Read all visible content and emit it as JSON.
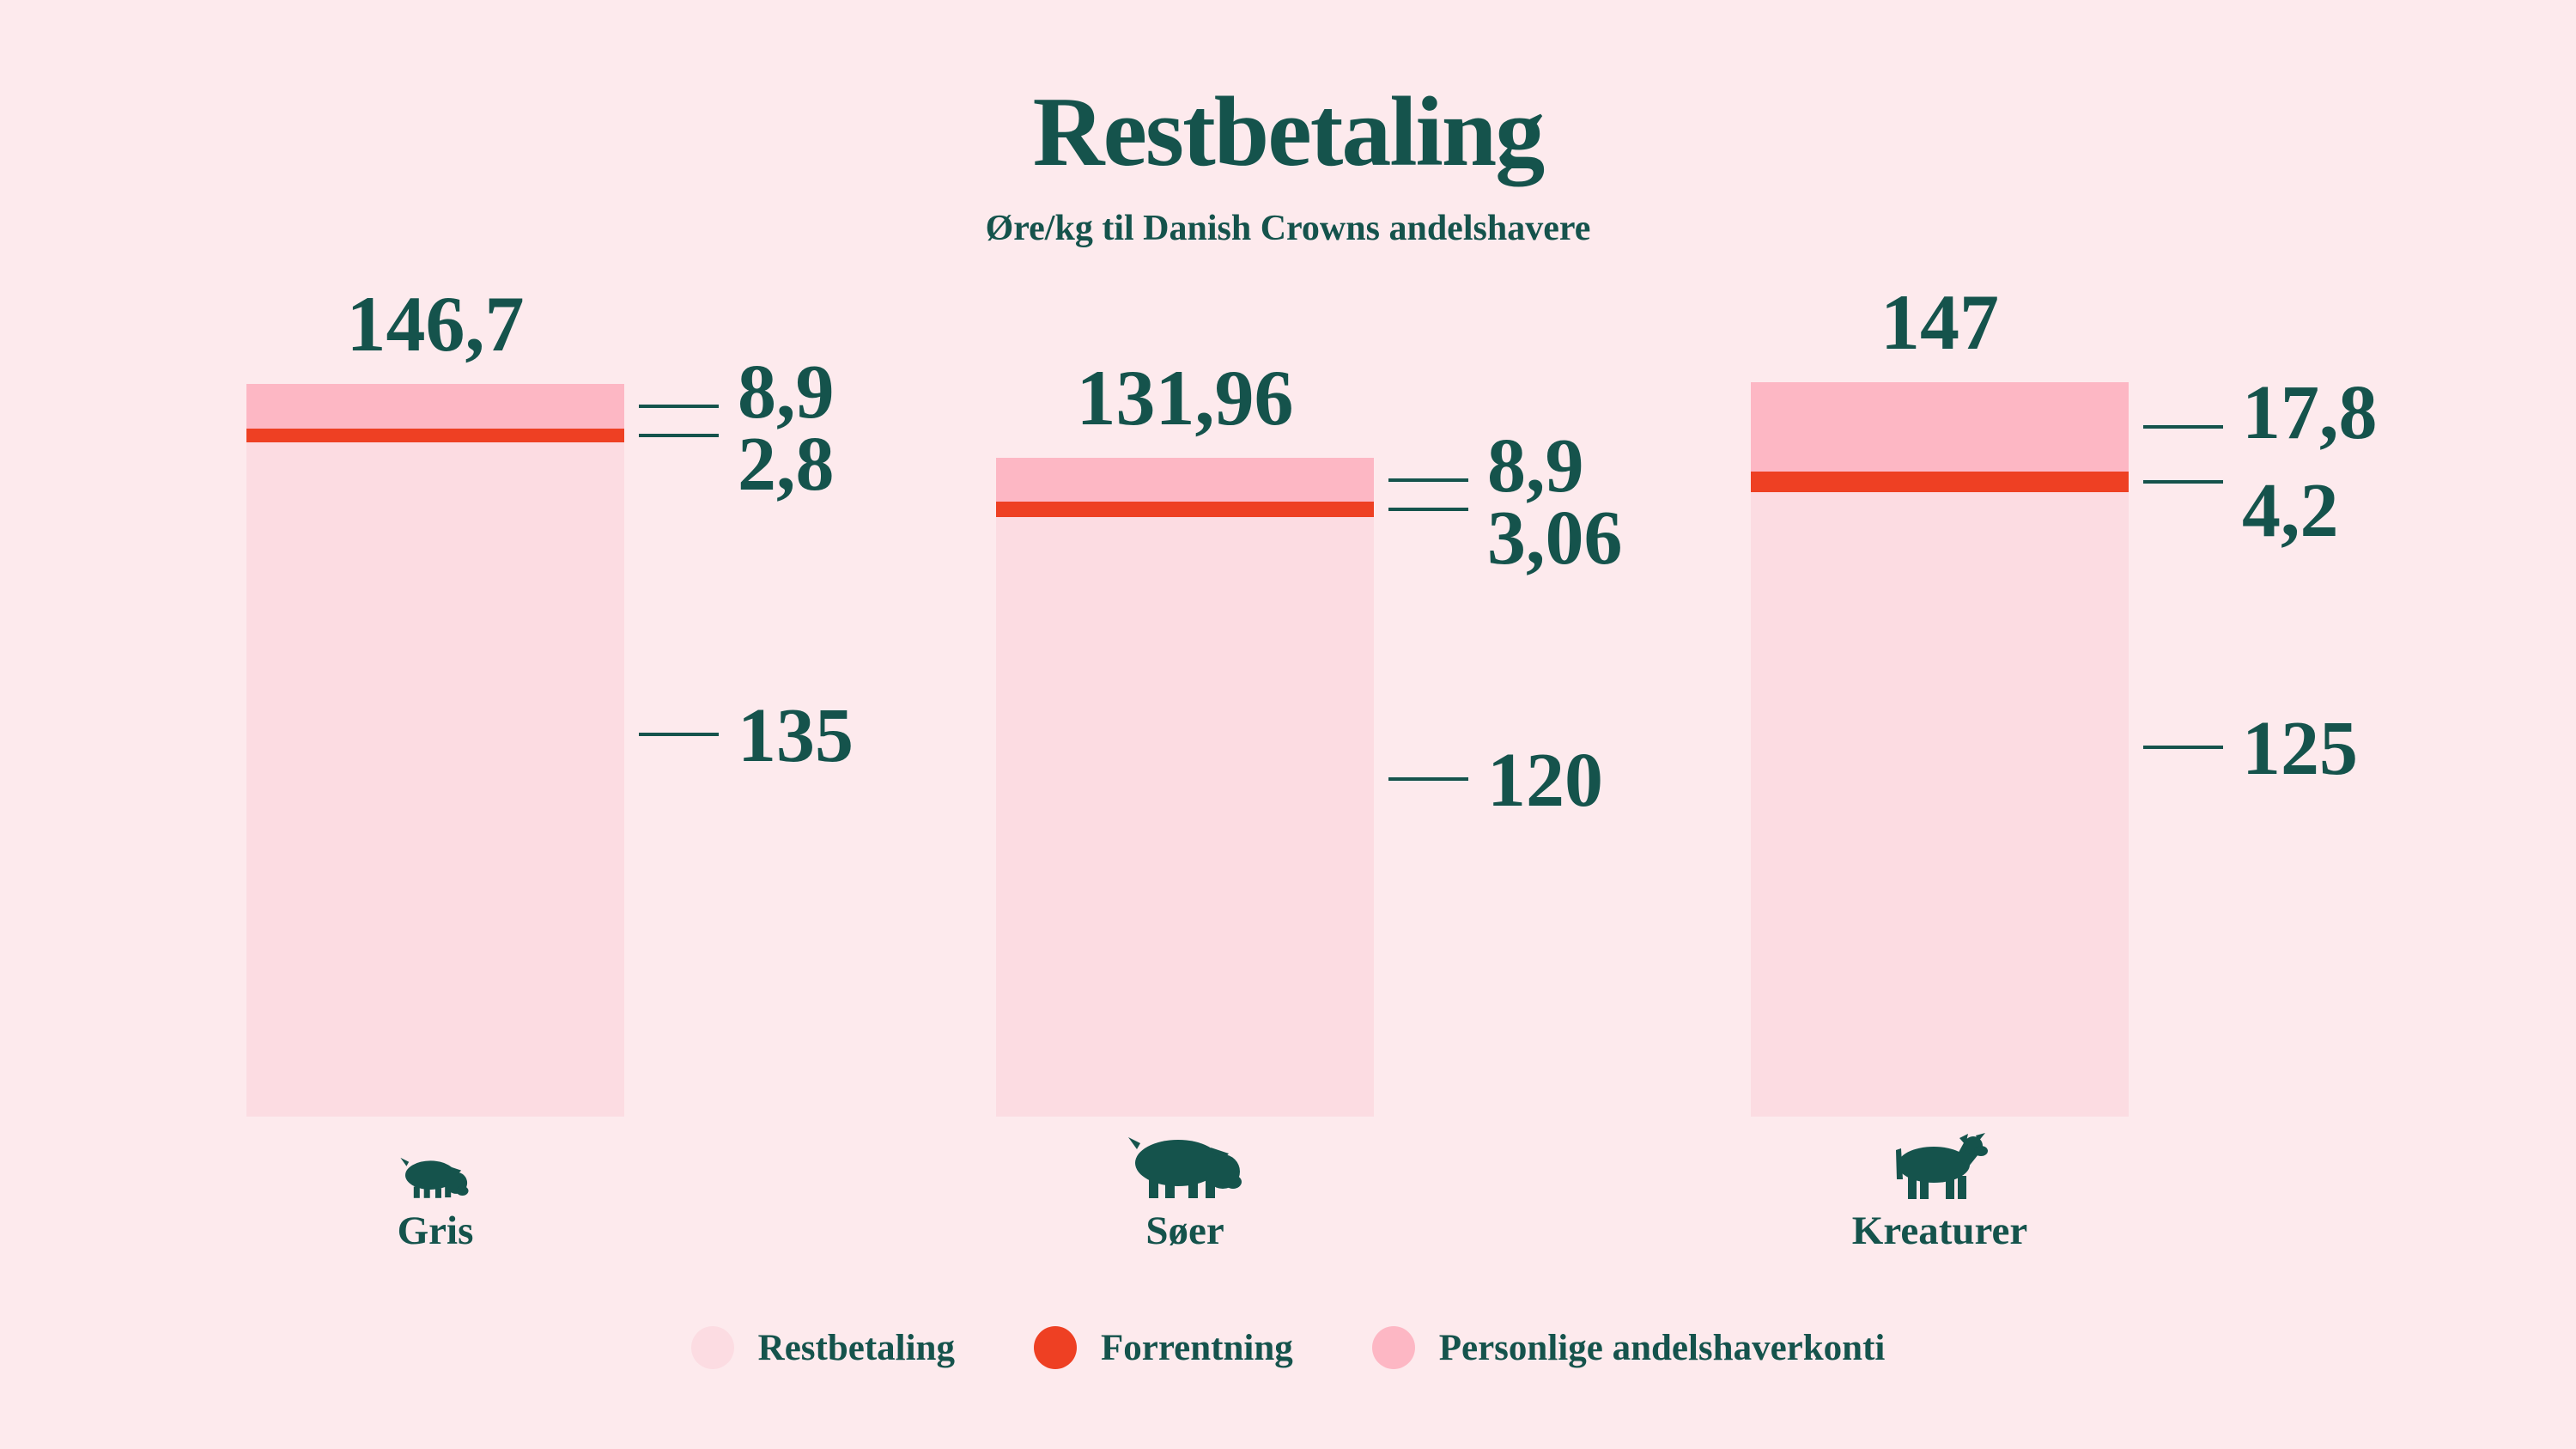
{
  "header": {
    "title": "Restbetaling",
    "subtitle": "Øre/kg til Danish Crowns andelshavere"
  },
  "colors": {
    "background": "#fdeaed",
    "text": "#15534c",
    "restbetaling": "#fcdce2",
    "forrentning": "#ee4023",
    "andelshaverkonti": "#fdb7c4"
  },
  "chart_data": {
    "type": "bar",
    "stacked": true,
    "title": "Restbetaling",
    "subtitle": "Øre/kg til Danish Crowns andelshavere",
    "unit": "Øre/kg",
    "categories": [
      "Gris",
      "Søer",
      "Kreaturer"
    ],
    "category_icons": [
      "pig-icon",
      "sow-icon",
      "cow-icon"
    ],
    "series": [
      {
        "name": "Restbetaling",
        "values": [
          135,
          120,
          125
        ],
        "labels": [
          "135",
          "120",
          "125"
        ],
        "color": "#fcdce2"
      },
      {
        "name": "Forrentning",
        "values": [
          2.8,
          3.06,
          4.2
        ],
        "labels": [
          "2,8",
          "3,06",
          "4,2"
        ],
        "color": "#ee4023"
      },
      {
        "name": "Personlige andelshaverkonti",
        "values": [
          8.9,
          8.9,
          17.8
        ],
        "labels": [
          "8,9",
          "8,9",
          "17,8"
        ],
        "color": "#fdb7c4"
      }
    ],
    "totals": [
      146.7,
      131.96,
      147
    ],
    "total_labels": [
      "146,7",
      "131,96",
      "147"
    ],
    "legend_position": "bottom",
    "axes": "none",
    "grid": false
  },
  "legend": {
    "items": [
      {
        "label": "Restbetaling",
        "color": "#fcdce2"
      },
      {
        "label": "Forrentning",
        "color": "#ee4023"
      },
      {
        "label": "Personlige andelshaverkonti",
        "color": "#fdb7c4"
      }
    ]
  }
}
